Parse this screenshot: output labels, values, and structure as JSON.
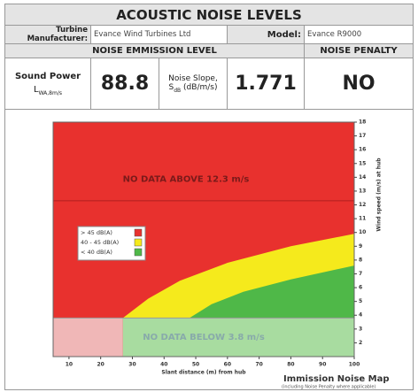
{
  "header": {
    "title": "ACOUSTIC NOISE LEVELS"
  },
  "details": {
    "manufacturer_label": "Turbine Manufacturer:",
    "manufacturer": "Evance Wind Turbines Ltd",
    "model_label": "Model:",
    "model": "Evance R9000"
  },
  "sections": {
    "emission": "NOISE EMMISSION LEVEL",
    "penalty": "NOISE PENALTY"
  },
  "values": {
    "sound_power_label": "Sound Power",
    "sound_power_symbol": "L",
    "sound_power_subscript": "WA,8m/s",
    "sound_power": "88.8",
    "slope_label": "Noise Slope,",
    "slope_symbol": "S",
    "slope_subscript": "dB",
    "slope_unit": "(dB/m/s)",
    "slope": "1.771",
    "penalty": "NO"
  },
  "chart_data": {
    "type": "area",
    "title": "Immission Noise Map",
    "subtitle": "(including Noise Penalty where applicable)",
    "x_label": "Slant distance (m) from hub",
    "y_label": "Wind speed (m/s) at hub",
    "xlim": [
      5,
      100
    ],
    "xticks": [
      10,
      20,
      30,
      40,
      50,
      60,
      70,
      80,
      90,
      100
    ],
    "ylim": [
      1,
      18
    ],
    "yticks": [
      2,
      3,
      4,
      5,
      6,
      7,
      8,
      9,
      10,
      11,
      12,
      13,
      14,
      15,
      16,
      17,
      18
    ],
    "data_ceiling": 12.3,
    "data_floor": 3.8,
    "annotations": [
      "NO DATA ABOVE 12.3 m/s",
      "NO DATA BELOW 3.8 m/s"
    ],
    "series": [
      {
        "name": "> 45 dB(A)",
        "color": "#e8312e"
      },
      {
        "name": "40 - 45 dB(A)",
        "color": "#f5ea1c",
        "x": [
          27,
          35,
          45,
          60,
          80,
          100
        ],
        "values": [
          3.8,
          5.2,
          6.5,
          7.8,
          9,
          9.9
        ]
      },
      {
        "name": "< 40 dB(A)",
        "color": "#4fb848",
        "x": [
          48,
          55,
          65,
          80,
          100
        ],
        "values": [
          3.8,
          4.8,
          5.7,
          6.6,
          7.6
        ]
      }
    ]
  }
}
